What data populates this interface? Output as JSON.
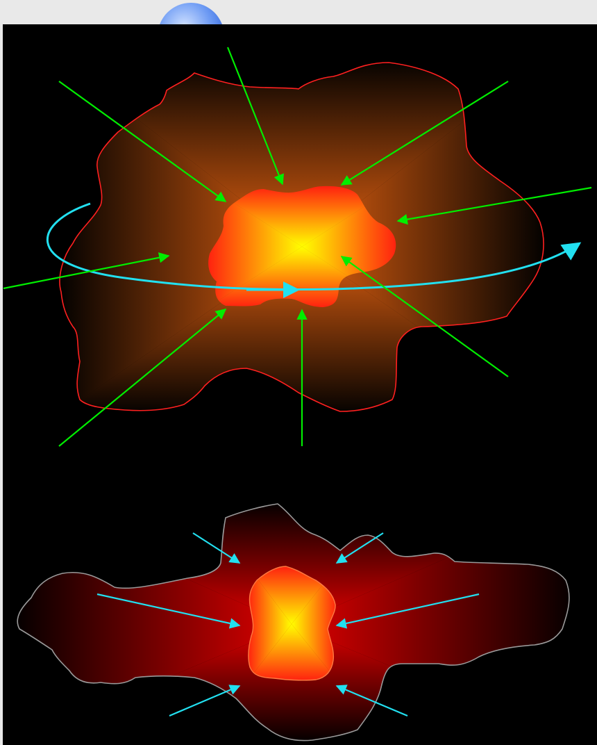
{
  "colors": {
    "page_background": "#e9e9e9",
    "panel_background": "#000000",
    "decor_orb": "#5f8ff0",
    "top_outer_outline": "#ff2020",
    "top_glow": "#e06010",
    "core_outer": "#ff1a10",
    "core_inner": "#ffff00",
    "top_inflow_arrow": "#00ee00",
    "rotation_arrow": "#22e0f0",
    "bottom_outer_outline": "#9a9a9a",
    "bottom_glow": "#e00000",
    "bottom_core_outline": "#ff7a40",
    "bottom_inflow_arrow": "#22e0f0"
  },
  "panels": [
    {
      "name": "rotating-cloud-collapse",
      "inflow_arrow_count": 8,
      "has_rotation_arrow": true
    },
    {
      "name": "flattened-cloud-collapse",
      "inflow_arrow_count": 6,
      "has_rotation_arrow": false
    }
  ]
}
